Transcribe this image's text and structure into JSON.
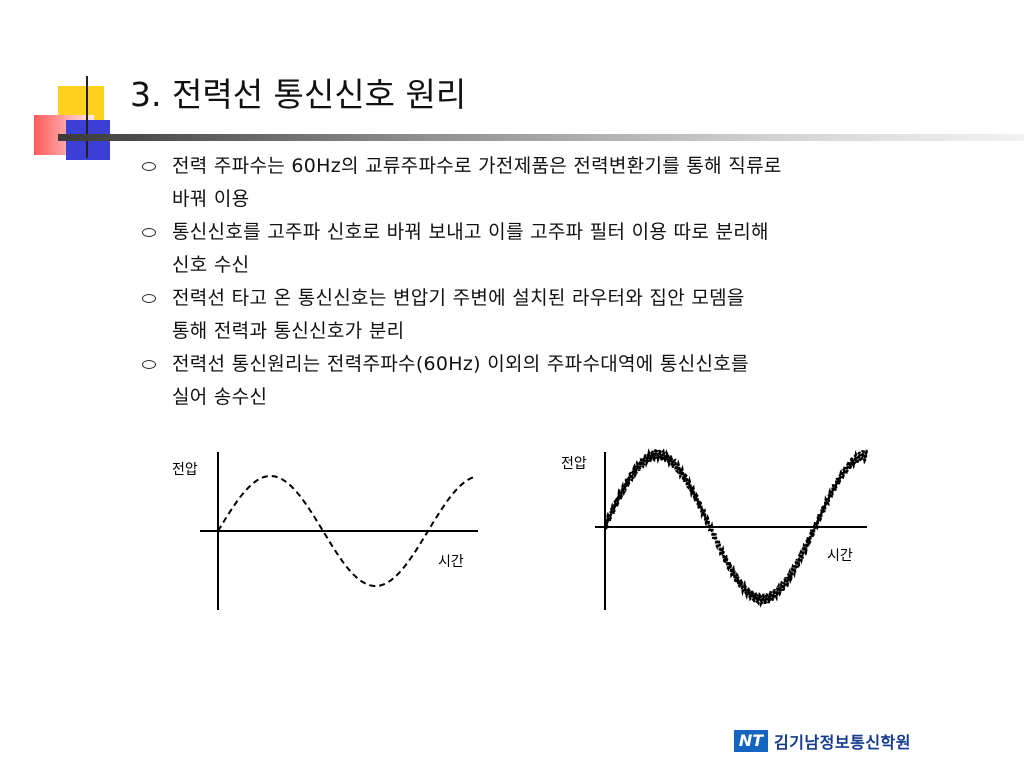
{
  "title": "3. 전력선 통신신호 원리",
  "bullets": [
    {
      "line1": "전력 주파수는 60Hz의 교류주파수로 가전제품은 전력변환기를 통해 직류로",
      "line2": "바꿔 이용"
    },
    {
      "line1": "통신신호를 고주파 신호로 바꿔 보내고 이를 고주파 필터 이용 따로 분리해",
      "line2": "신호 수신"
    },
    {
      "line1": "전력선 타고 온 통신신호는 변압기 주변에 설치된 라우터와 집안 모뎀을",
      "line2": "통해 전력과 통신신호가 분리"
    },
    {
      "line1": "전력선 통신원리는 전력주파수(60Hz) 이외의 주파수대역에 통신신호를",
      "line2": "실어 송수신"
    }
  ],
  "diagrams": {
    "left": {
      "y_label": "전압",
      "x_label": "시간"
    },
    "right": {
      "y_label": "전압",
      "x_label": "시간"
    }
  },
  "logo": {
    "mark": "NT",
    "name": "김기남정보통신학원"
  },
  "colors": {
    "accent_blue": "#3b3fd6",
    "accent_yellow": "#ffd21f",
    "accent_red": "#ff5a5a",
    "logo_blue": "#1565c0"
  }
}
